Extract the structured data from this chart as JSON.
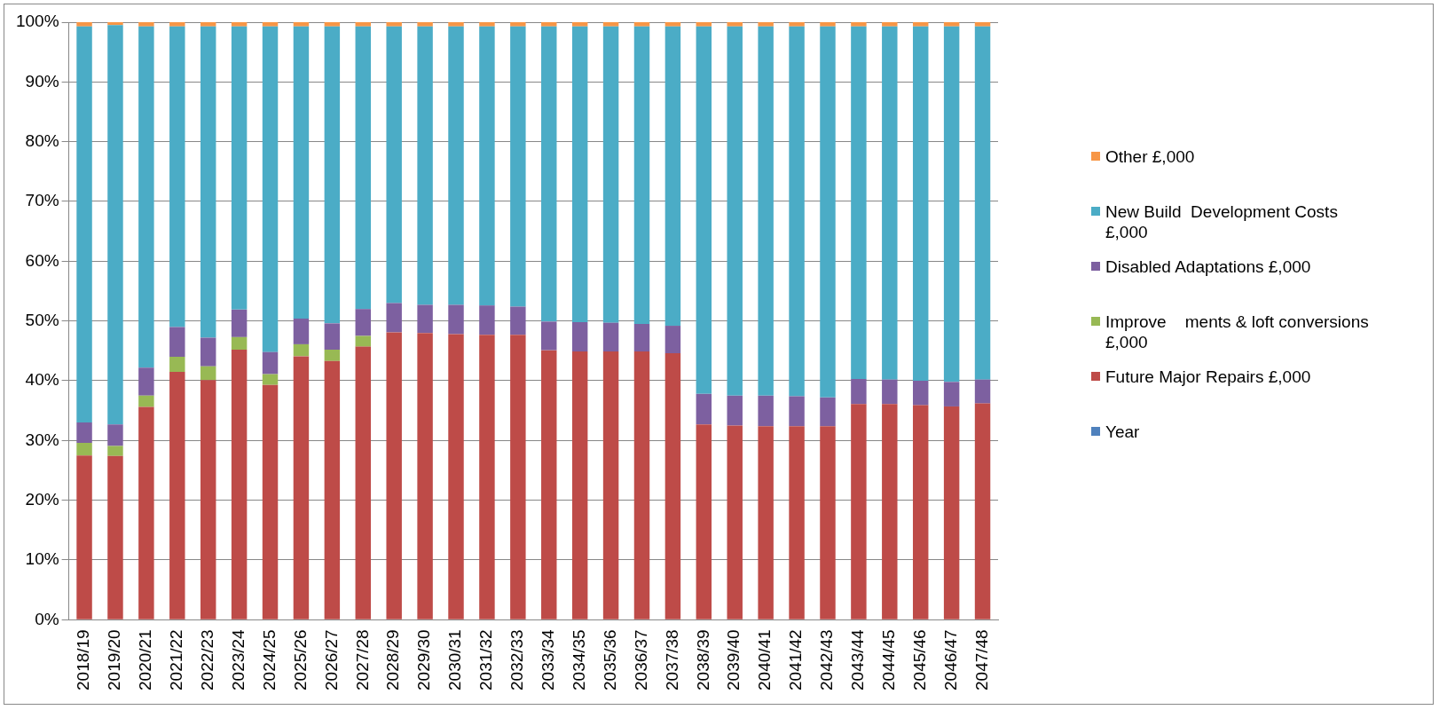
{
  "chart_data": {
    "type": "bar",
    "stacked": true,
    "grid": "y",
    "legend": "right",
    "categories": [
      "2018/19",
      "2019/20",
      "2020/21",
      "2021/22",
      "2022/23",
      "2023/24",
      "2024/25",
      "2025/26",
      "2026/27",
      "2027/28",
      "2028/29",
      "2029/30",
      "2030/31",
      "2031/32",
      "2032/33",
      "2033/34",
      "2034/35",
      "2035/36",
      "2036/37",
      "2037/38",
      "2038/39",
      "2039/40",
      "2040/41",
      "2041/42",
      "2042/43",
      "2043/44",
      "2044/45",
      "2045/46",
      "2046/47",
      "2047/48"
    ],
    "ylim": [
      0,
      100
    ],
    "yticks": [
      {
        "value": 0,
        "label": "0%"
      },
      {
        "value": 10,
        "label": "10%"
      },
      {
        "value": 20,
        "label": "20%"
      },
      {
        "value": 30,
        "label": "30%"
      },
      {
        "value": 40,
        "label": "40%"
      },
      {
        "value": 50,
        "label": "50%"
      },
      {
        "value": 60,
        "label": "60%"
      },
      {
        "value": 70,
        "label": "70%"
      },
      {
        "value": 80,
        "label": "80%"
      },
      {
        "value": 90,
        "label": "90%"
      },
      {
        "value": 100,
        "label": "100%"
      }
    ],
    "series": [
      {
        "name": "Year",
        "color": "#4f81bd",
        "values": [
          0,
          0,
          0,
          0,
          0,
          0,
          0,
          0,
          0,
          0,
          0,
          0,
          0,
          0,
          0,
          0,
          0,
          0,
          0,
          0,
          0,
          0,
          0,
          0,
          0,
          0,
          0,
          0,
          0,
          0
        ]
      },
      {
        "name": "Future Major Repairs £,000",
        "color": "#be4b48",
        "values": [
          27.5,
          27.4,
          35.6,
          41.5,
          40.1,
          45.2,
          39.3,
          44.1,
          43.3,
          45.7,
          48.1,
          48.0,
          47.8,
          47.7,
          47.7,
          45.1,
          44.9,
          44.9,
          44.9,
          44.6,
          32.7,
          32.5,
          32.4,
          32.4,
          32.4,
          36.1,
          36.1,
          35.9,
          35.7,
          36.2
        ]
      },
      {
        "name": "Improve    ments & loft conversions £,000",
        "color": "#98b954",
        "values": [
          2.1,
          1.7,
          1.9,
          2.5,
          2.3,
          2.1,
          1.8,
          2.0,
          1.9,
          1.8,
          0,
          0,
          0,
          0,
          0,
          0,
          0,
          0,
          0,
          0,
          0,
          0,
          0,
          0,
          0,
          0,
          0,
          0,
          0,
          0
        ]
      },
      {
        "name": "Disabled Adaptations £,000",
        "color": "#7d60a0",
        "values": [
          3.4,
          3.6,
          4.7,
          5.0,
          4.8,
          4.6,
          3.7,
          4.3,
          4.4,
          4.5,
          4.9,
          4.7,
          4.9,
          4.9,
          4.7,
          4.8,
          4.9,
          4.8,
          4.6,
          4.6,
          5.1,
          5.0,
          5.1,
          5.0,
          4.8,
          4.2,
          4.1,
          4.1,
          4.1,
          4.0
        ]
      },
      {
        "name": "New Build  Development Costs £,000",
        "color": "#4bacc6",
        "values": [
          66.3,
          66.8,
          57.1,
          50.3,
          52.1,
          47.4,
          54.5,
          48.9,
          49.7,
          47.3,
          46.3,
          46.6,
          46.6,
          46.7,
          46.9,
          49.4,
          49.5,
          49.6,
          49.8,
          50.1,
          61.5,
          61.8,
          61.8,
          61.9,
          62.1,
          59.0,
          59.1,
          59.3,
          59.5,
          59.1
        ]
      },
      {
        "name": "Other £,000",
        "color": "#f79646",
        "values": [
          0.7,
          0.5,
          0.7,
          0.7,
          0.7,
          0.7,
          0.7,
          0.7,
          0.7,
          0.7,
          0.7,
          0.7,
          0.7,
          0.7,
          0.7,
          0.7,
          0.7,
          0.7,
          0.7,
          0.7,
          0.7,
          0.7,
          0.7,
          0.7,
          0.7,
          0.7,
          0.7,
          0.7,
          0.7,
          0.7
        ]
      }
    ]
  }
}
